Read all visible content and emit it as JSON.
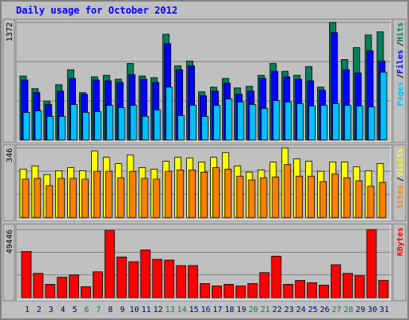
{
  "chart_data": [
    {
      "type": "bar",
      "title": "Daily usage for October 2012",
      "separator": "/",
      "ylim": [
        0,
        1372
      ],
      "yticks": [
        1372
      ],
      "series": [
        {
          "name": "Hits",
          "color": "#00805c",
          "values": [
            746,
            599,
            451,
            645,
            820,
            553,
            737,
            755,
            709,
            893,
            746,
            728,
            1234,
            866,
            921,
            562,
            617,
            718,
            608,
            626,
            755,
            893,
            801,
            755,
            857,
            617,
            1372,
            939,
            1078,
            1225,
            1262
          ]
        },
        {
          "name": "Files",
          "color": "#0000ff",
          "values": [
            700,
            553,
            414,
            571,
            718,
            534,
            700,
            691,
            672,
            764,
            709,
            672,
            1124,
            820,
            866,
            516,
            571,
            663,
            534,
            571,
            718,
            801,
            737,
            709,
            691,
            580,
            1253,
            820,
            783,
            1041,
            921
          ]
        },
        {
          "name": "Pages",
          "color": "#00c0ff",
          "values": [
            322,
            341,
            276,
            276,
            414,
            322,
            332,
            405,
            378,
            405,
            276,
            350,
            617,
            286,
            405,
            276,
            405,
            479,
            442,
            414,
            368,
            460,
            442,
            424,
            396,
            405,
            424,
            405,
            396,
            387,
            792
          ]
        }
      ]
    },
    {
      "type": "bar",
      "separator": "/",
      "ylim": [
        0,
        346
      ],
      "yticks": [
        346
      ],
      "series": [
        {
          "name": "Visits",
          "color": "#ffff00",
          "values": [
            241,
            257,
            214,
            233,
            249,
            233,
            331,
            300,
            268,
            311,
            249,
            241,
            280,
            300,
            296,
            276,
            300,
            323,
            257,
            226,
            237,
            276,
            346,
            292,
            280,
            230,
            276,
            276,
            253,
            233,
            268
          ]
        },
        {
          "name": "Sites",
          "color": "#ff8000",
          "values": [
            191,
            195,
            159,
            195,
            195,
            191,
            230,
            230,
            198,
            230,
            195,
            191,
            230,
            237,
            237,
            226,
            249,
            241,
            206,
            187,
            198,
            202,
            264,
            206,
            206,
            179,
            218,
            198,
            183,
            156,
            175
          ]
        }
      ]
    },
    {
      "type": "bar",
      "ylim": [
        0,
        49446
      ],
      "yticks": [
        49446
      ],
      "categories": [
        "1",
        "2",
        "3",
        "4",
        "5",
        "6",
        "7",
        "8",
        "9",
        "10",
        "11",
        "12",
        "13",
        "14",
        "15",
        "16",
        "17",
        "18",
        "19",
        "20",
        "21",
        "22",
        "23",
        "24",
        "25",
        "26",
        "27",
        "28",
        "29",
        "30",
        "31"
      ],
      "category_colors": [
        "#000080",
        "#000080",
        "#000080",
        "#000080",
        "#000080",
        "#00805c",
        "#00805c",
        "#000080",
        "#000080",
        "#000080",
        "#000080",
        "#000080",
        "#00805c",
        "#00805c",
        "#000080",
        "#000080",
        "#000080",
        "#000080",
        "#000080",
        "#00805c",
        "#00805c",
        "#000080",
        "#000080",
        "#000080",
        "#000080",
        "#000080",
        "#00805c",
        "#00805c",
        "#000080",
        "#000080",
        "#000080"
      ],
      "series": [
        {
          "name": "KBytes",
          "color": "#ff0000",
          "values": [
            33512,
            17608,
            9656,
            14768,
            16472,
            7952,
            18744,
            48848,
            29536,
            26128,
            34648,
            27832,
            27264,
            23288,
            23288,
            10224,
            8520,
            9656,
            8520,
            10224,
            18176,
            30104,
            9656,
            12496,
            10792,
            9088,
            23856,
            17608,
            15904,
            49446,
            12496
          ]
        }
      ]
    }
  ]
}
